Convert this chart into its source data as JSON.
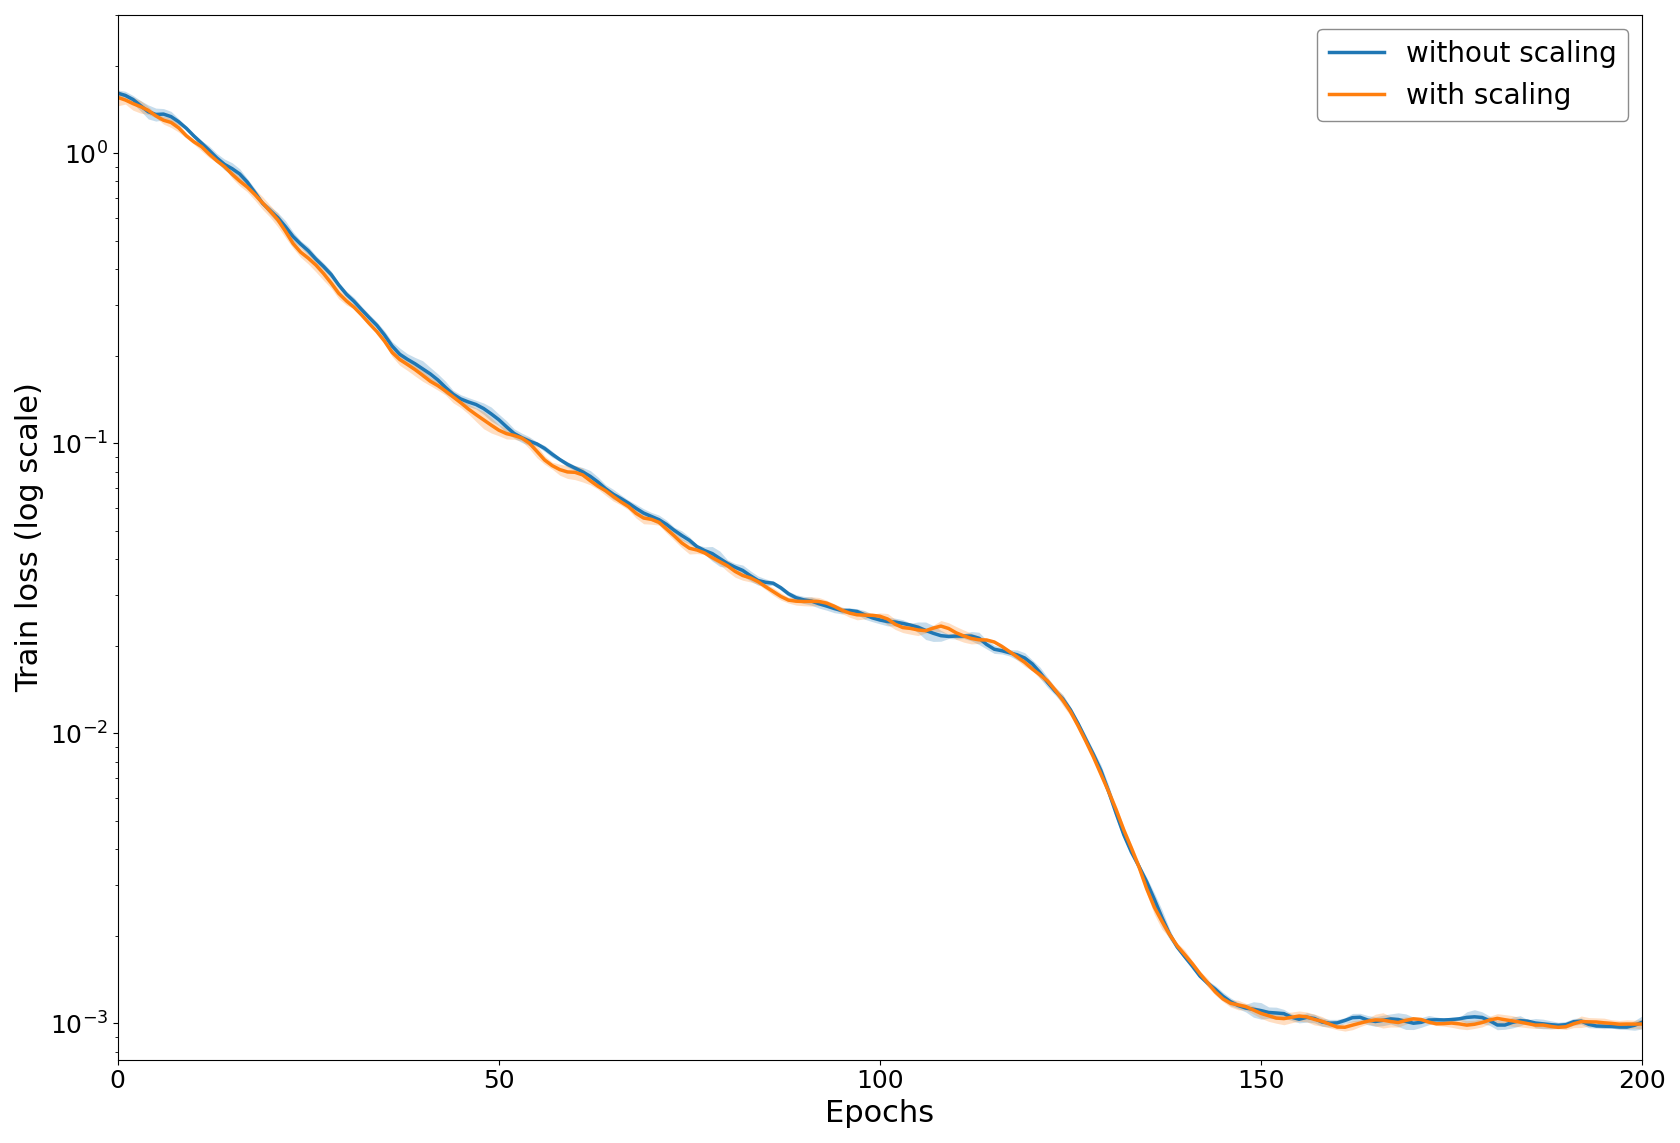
{
  "title": "",
  "xlabel": "Epochs",
  "ylabel": "Train loss (log scale)",
  "xlim": [
    0,
    200
  ],
  "ylim_log": [
    0.00075,
    3.0
  ],
  "line1_label": "without scaling",
  "line1_color": "#1f77b4",
  "line1_fill_alpha": 0.25,
  "line2_label": "with scaling",
  "line2_color": "#ff7f0e",
  "line2_fill_alpha": 0.25,
  "legend_fontsize": 20,
  "axis_label_fontsize": 22,
  "tick_fontsize": 18,
  "line_width": 2.5,
  "seed": 42
}
